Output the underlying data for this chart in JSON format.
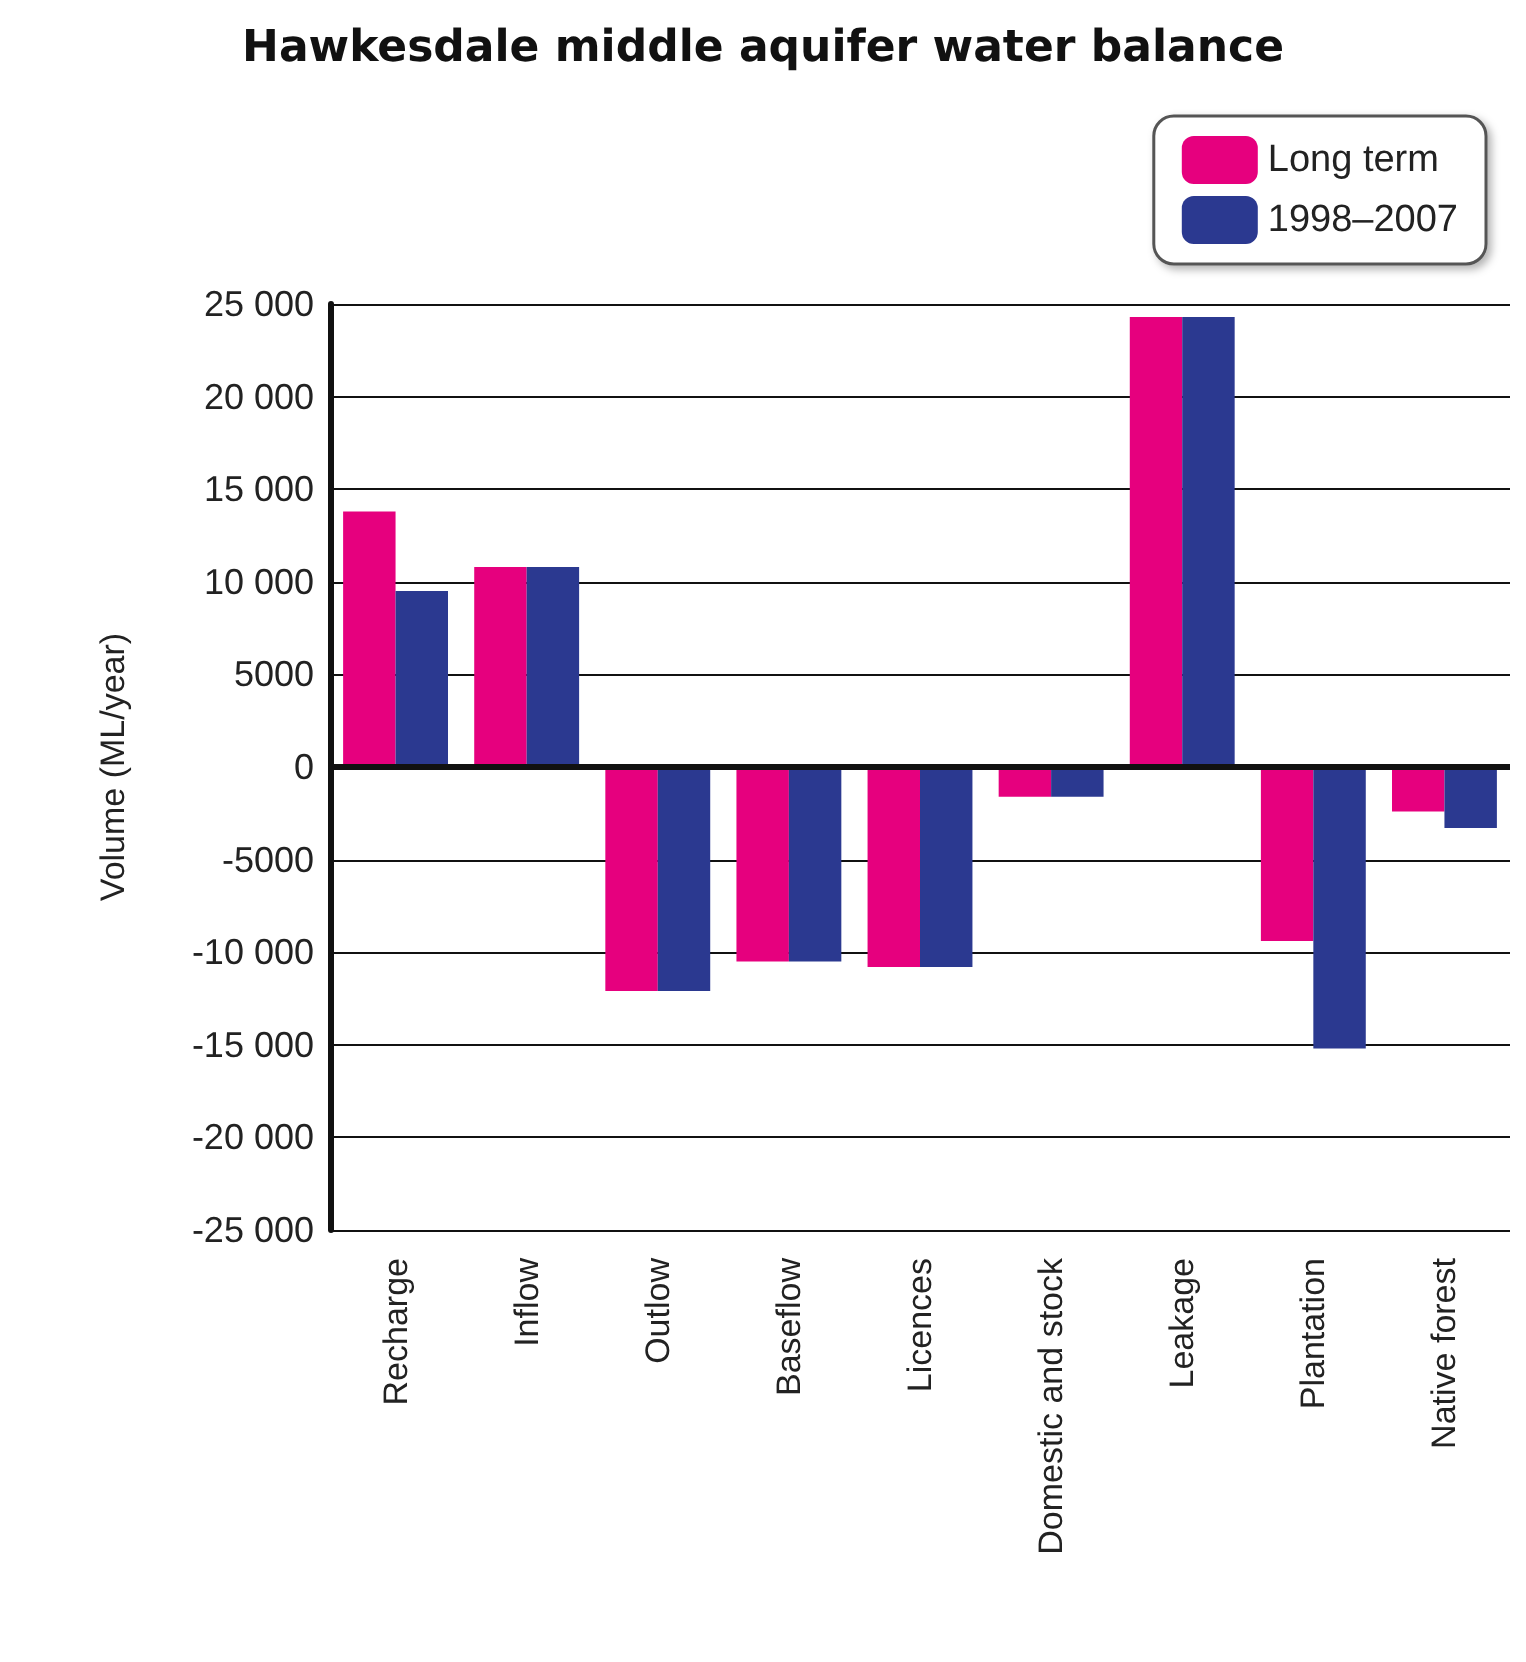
{
  "chart_data": {
    "type": "bar",
    "title": "Hawkesdale middle aquifer water balance",
    "ylabel": "Volume (ML/year)",
    "categories": [
      "Recharge",
      "Inflow",
      "Outlow",
      "Baseflow",
      "Licences",
      "Domestic and stock",
      "Leakage",
      "Plantation",
      "Native forest"
    ],
    "series": [
      {
        "name": "Long term",
        "color": "#e6007e",
        "values": [
          13800,
          10800,
          -12100,
          -10500,
          -10800,
          -1600,
          24300,
          -9400,
          -2400
        ]
      },
      {
        "name": "1998–2007",
        "color": "#2b3990",
        "values": [
          9500,
          10800,
          -12100,
          -10500,
          -10800,
          -1600,
          24300,
          -15200,
          -3300
        ]
      }
    ],
    "ylim": [
      -25000,
      25000
    ],
    "yticks": [
      {
        "value": -25000,
        "label": "-25 000"
      },
      {
        "value": -20000,
        "label": "-20 000"
      },
      {
        "value": -15000,
        "label": "-15 000"
      },
      {
        "value": -10000,
        "label": "-10 000"
      },
      -5000,
      0,
      5000,
      {
        "value": 10000,
        "label": "10 000"
      },
      {
        "value": 15000,
        "label": "15 000"
      },
      {
        "value": 20000,
        "label": "20 000"
      },
      {
        "value": 25000,
        "label": "25 000"
      }
    ],
    "grid": "y",
    "legend": "top right"
  }
}
